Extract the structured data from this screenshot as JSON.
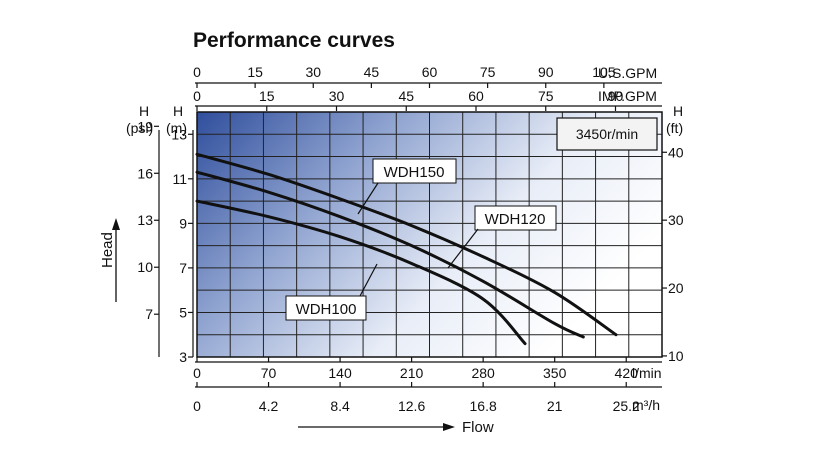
{
  "chart_data": {
    "type": "line",
    "title": "Performance curves",
    "speed_label": "3450r/min",
    "x_axes": {
      "usgpm": {
        "unit": "U.S.GPM",
        "ticks": [
          "0",
          "15",
          "30",
          "45",
          "60",
          "75",
          "90",
          "105"
        ],
        "range": [
          0,
          120
        ]
      },
      "impgpm": {
        "unit": "IMP.GPM",
        "ticks": [
          "0",
          "15",
          "30",
          "45",
          "60",
          "75",
          "90"
        ],
        "range": [
          0,
          100
        ]
      },
      "lmin": {
        "unit": "l/min",
        "ticks": [
          "0",
          "70",
          "140",
          "210",
          "280",
          "350",
          "420"
        ],
        "range": [
          0,
          455
        ]
      },
      "m3h": {
        "unit": "m³/h",
        "ticks": [
          "0",
          "4.2",
          "8.4",
          "12.6",
          "16.8",
          "21",
          "25.2"
        ],
        "range": [
          0,
          27.3
        ]
      }
    },
    "y_axes": {
      "psi": {
        "symbol": "H",
        "unit": "(psi)",
        "ticks": [
          "19",
          "16",
          "13",
          "10",
          "7"
        ]
      },
      "m": {
        "symbol": "H",
        "unit": "(m)",
        "ticks": [
          "13",
          "11",
          "9",
          "7",
          "5",
          "3"
        ],
        "range": [
          3,
          14
        ]
      },
      "ft": {
        "symbol": "H",
        "unit": "(ft)",
        "ticks": [
          "40",
          "30",
          "20",
          "10"
        ]
      }
    },
    "ylabel": "Head",
    "xlabel": "Flow",
    "grid": true,
    "series": [
      {
        "name": "WDH150",
        "x_lmin": [
          0,
          70,
          140,
          210,
          280,
          350,
          410
        ],
        "y_m": [
          12.1,
          11.2,
          10.1,
          8.9,
          7.5,
          5.9,
          4.0
        ]
      },
      {
        "name": "WDH120",
        "x_lmin": [
          0,
          70,
          140,
          210,
          280,
          350,
          378
        ],
        "y_m": [
          11.3,
          10.4,
          9.3,
          8.0,
          6.4,
          4.5,
          3.9
        ]
      },
      {
        "name": "WDH100",
        "x_lmin": [
          0,
          70,
          140,
          210,
          280,
          321
        ],
        "y_m": [
          10.0,
          9.3,
          8.4,
          7.2,
          5.6,
          3.6
        ]
      }
    ]
  }
}
